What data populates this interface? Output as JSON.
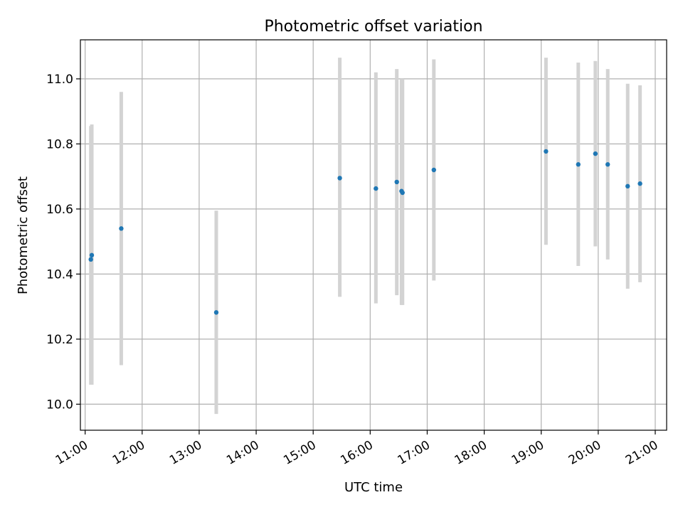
{
  "chart_data": {
    "type": "scatter",
    "title": "Photometric offset variation",
    "xlabel": "UTC time",
    "ylabel": "Photometric offset",
    "xlim": [
      "10:55",
      "21:12"
    ],
    "ylim": [
      9.92,
      11.12
    ],
    "grid": true,
    "x_tick_labels": [
      "11:00",
      "12:00",
      "13:00",
      "14:00",
      "15:00",
      "16:00",
      "17:00",
      "18:00",
      "19:00",
      "20:00",
      "21:00"
    ],
    "y_tick_labels": [
      "10.0",
      "10.2",
      "10.4",
      "10.6",
      "10.8",
      "11.0"
    ],
    "colors": {
      "point": "#1f77b4",
      "errorbar": "#d3d3d3",
      "grid": "#b0b0b0"
    },
    "points": [
      {
        "x": "11:06",
        "y": 10.445,
        "y_low": 10.06,
        "y_high": 10.855
      },
      {
        "x": "11:07",
        "y": 10.458,
        "y_low": 10.06,
        "y_high": 10.86
      },
      {
        "x": "11:38",
        "y": 10.54,
        "y_low": 10.12,
        "y_high": 10.96
      },
      {
        "x": "13:18",
        "y": 10.282,
        "y_low": 9.97,
        "y_high": 10.595
      },
      {
        "x": "15:28",
        "y": 10.695,
        "y_low": 10.33,
        "y_high": 11.065
      },
      {
        "x": "16:06",
        "y": 10.663,
        "y_low": 10.31,
        "y_high": 11.02
      },
      {
        "x": "16:28",
        "y": 10.683,
        "y_low": 10.335,
        "y_high": 11.03
      },
      {
        "x": "16:33",
        "y": 10.655,
        "y_low": 10.305,
        "y_high": 11.0
      },
      {
        "x": "16:34",
        "y": 10.65,
        "y_low": 10.305,
        "y_high": 11.0
      },
      {
        "x": "17:07",
        "y": 10.72,
        "y_low": 10.38,
        "y_high": 11.06
      },
      {
        "x": "19:05",
        "y": 10.777,
        "y_low": 10.49,
        "y_high": 11.065
      },
      {
        "x": "19:39",
        "y": 10.737,
        "y_low": 10.425,
        "y_high": 11.05
      },
      {
        "x": "19:57",
        "y": 10.77,
        "y_low": 10.485,
        "y_high": 11.055
      },
      {
        "x": "20:10",
        "y": 10.737,
        "y_low": 10.445,
        "y_high": 11.03
      },
      {
        "x": "20:31",
        "y": 10.67,
        "y_low": 10.355,
        "y_high": 10.985
      },
      {
        "x": "20:44",
        "y": 10.678,
        "y_low": 10.375,
        "y_high": 10.98
      }
    ]
  }
}
